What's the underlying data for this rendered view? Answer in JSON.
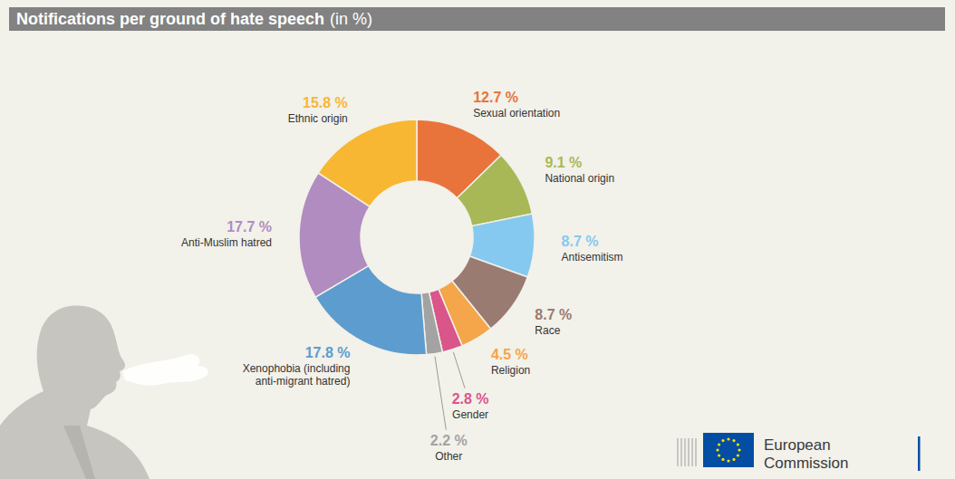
{
  "chart_data": {
    "type": "pie",
    "title": "Notifications per ground of hate speech",
    "subtitle": "(in %)",
    "categories": [
      "Sexual orientation",
      "National origin",
      "Antisemitism",
      "Race",
      "Religion",
      "Gender",
      "Other",
      "Xenophobia (including anti-migrant hatred)",
      "Anti-Muslim hatred",
      "Ethnic origin"
    ],
    "values": [
      12.7,
      9.1,
      8.7,
      8.7,
      4.5,
      2.8,
      2.2,
      17.8,
      17.7,
      15.8
    ],
    "value_labels": [
      "12.7 %",
      "9.1 %",
      "8.7 %",
      "8.7 %",
      "4.5 %",
      "2.8 %",
      "2.2 %",
      "17.8 %",
      "17.7 %",
      "15.8 %"
    ],
    "colors": [
      "#e8743b",
      "#a9b857",
      "#86c9f0",
      "#9a7b72",
      "#f5a54a",
      "#d9558a",
      "#a3a3a3",
      "#5d9ccf",
      "#b08cc0",
      "#f8b733"
    ],
    "data_labels": true,
    "annotations": [
      "European",
      "Commission"
    ]
  }
}
